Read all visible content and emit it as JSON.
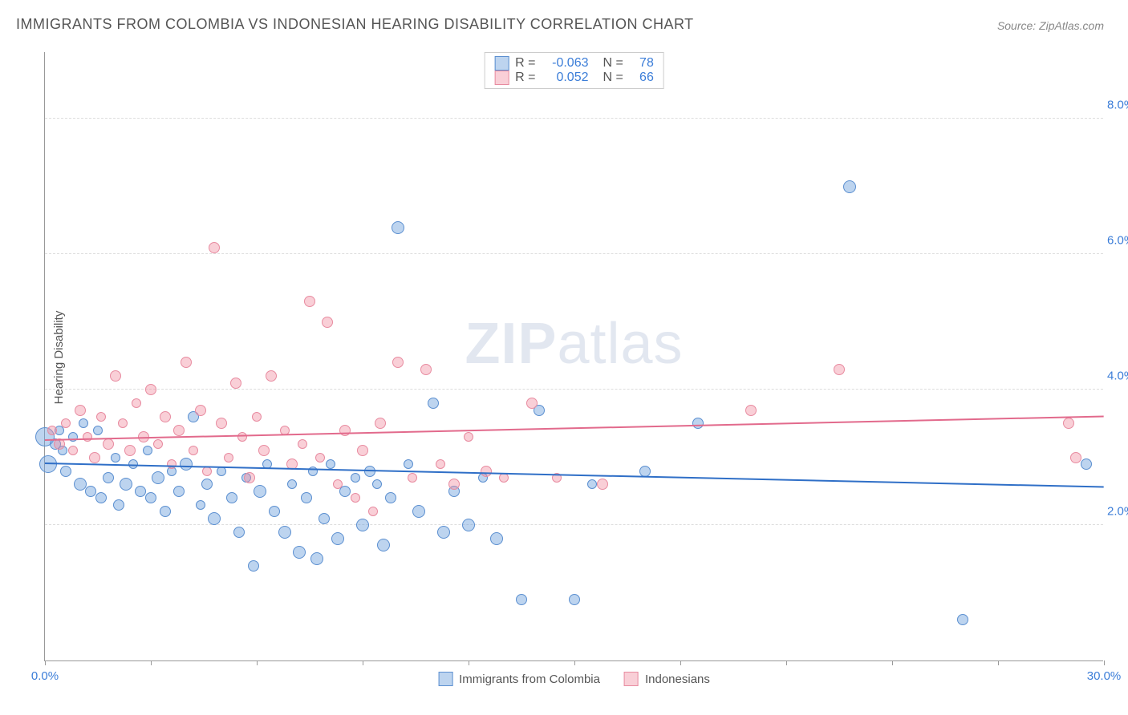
{
  "title": "IMMIGRANTS FROM COLOMBIA VS INDONESIAN HEARING DISABILITY CORRELATION CHART",
  "source": "Source: ZipAtlas.com",
  "ylabel": "Hearing Disability",
  "watermark_bold": "ZIP",
  "watermark_rest": "atlas",
  "chart": {
    "type": "scatter",
    "xlim": [
      0,
      30
    ],
    "ylim": [
      0,
      9
    ],
    "x_ticks": [
      0,
      3,
      6,
      9,
      12,
      15,
      18,
      21,
      24,
      27,
      30
    ],
    "x_tick_labels": {
      "0": "0.0%",
      "30": "30.0%"
    },
    "y_ticks": [
      2,
      4,
      6,
      8
    ],
    "y_tick_labels": {
      "2": "2.0%",
      "4": "4.0%",
      "6": "6.0%",
      "8": "8.0%"
    },
    "grid_color": "#dddddd",
    "axis_color": "#999999",
    "tick_label_color": "#3b7dd8",
    "background_color": "#ffffff",
    "series": [
      {
        "name": "Immigrants from Colombia",
        "fill": "rgba(108,160,220,0.45)",
        "stroke": "#5b8fd0",
        "line_color": "#2f6fc7",
        "r_label": "-0.063",
        "n_label": "78",
        "trend": {
          "x1": 0,
          "y1": 2.9,
          "x2": 30,
          "y2": 2.55
        },
        "points": [
          {
            "x": 0.0,
            "y": 3.3,
            "r": 12
          },
          {
            "x": 0.1,
            "y": 2.9,
            "r": 11
          },
          {
            "x": 0.3,
            "y": 3.2,
            "r": 7
          },
          {
            "x": 0.4,
            "y": 3.4,
            "r": 6
          },
          {
            "x": 0.5,
            "y": 3.1,
            "r": 6
          },
          {
            "x": 0.6,
            "y": 2.8,
            "r": 7
          },
          {
            "x": 0.8,
            "y": 3.3,
            "r": 6
          },
          {
            "x": 1.0,
            "y": 2.6,
            "r": 8
          },
          {
            "x": 1.1,
            "y": 3.5,
            "r": 6
          },
          {
            "x": 1.3,
            "y": 2.5,
            "r": 7
          },
          {
            "x": 1.5,
            "y": 3.4,
            "r": 6
          },
          {
            "x": 1.6,
            "y": 2.4,
            "r": 7
          },
          {
            "x": 1.8,
            "y": 2.7,
            "r": 7
          },
          {
            "x": 2.0,
            "y": 3.0,
            "r": 6
          },
          {
            "x": 2.1,
            "y": 2.3,
            "r": 7
          },
          {
            "x": 2.3,
            "y": 2.6,
            "r": 8
          },
          {
            "x": 2.5,
            "y": 2.9,
            "r": 6
          },
          {
            "x": 2.7,
            "y": 2.5,
            "r": 7
          },
          {
            "x": 2.9,
            "y": 3.1,
            "r": 6
          },
          {
            "x": 3.0,
            "y": 2.4,
            "r": 7
          },
          {
            "x": 3.2,
            "y": 2.7,
            "r": 8
          },
          {
            "x": 3.4,
            "y": 2.2,
            "r": 7
          },
          {
            "x": 3.6,
            "y": 2.8,
            "r": 6
          },
          {
            "x": 3.8,
            "y": 2.5,
            "r": 7
          },
          {
            "x": 4.0,
            "y": 2.9,
            "r": 8
          },
          {
            "x": 4.2,
            "y": 3.6,
            "r": 7
          },
          {
            "x": 4.4,
            "y": 2.3,
            "r": 6
          },
          {
            "x": 4.6,
            "y": 2.6,
            "r": 7
          },
          {
            "x": 4.8,
            "y": 2.1,
            "r": 8
          },
          {
            "x": 5.0,
            "y": 2.8,
            "r": 6
          },
          {
            "x": 5.3,
            "y": 2.4,
            "r": 7
          },
          {
            "x": 5.5,
            "y": 1.9,
            "r": 7
          },
          {
            "x": 5.7,
            "y": 2.7,
            "r": 6
          },
          {
            "x": 5.9,
            "y": 1.4,
            "r": 7
          },
          {
            "x": 6.1,
            "y": 2.5,
            "r": 8
          },
          {
            "x": 6.3,
            "y": 2.9,
            "r": 6
          },
          {
            "x": 6.5,
            "y": 2.2,
            "r": 7
          },
          {
            "x": 6.8,
            "y": 1.9,
            "r": 8
          },
          {
            "x": 7.0,
            "y": 2.6,
            "r": 6
          },
          {
            "x": 7.2,
            "y": 1.6,
            "r": 8
          },
          {
            "x": 7.4,
            "y": 2.4,
            "r": 7
          },
          {
            "x": 7.6,
            "y": 2.8,
            "r": 6
          },
          {
            "x": 7.7,
            "y": 1.5,
            "r": 8
          },
          {
            "x": 7.9,
            "y": 2.1,
            "r": 7
          },
          {
            "x": 8.1,
            "y": 2.9,
            "r": 6
          },
          {
            "x": 8.3,
            "y": 1.8,
            "r": 8
          },
          {
            "x": 8.5,
            "y": 2.5,
            "r": 7
          },
          {
            "x": 8.8,
            "y": 2.7,
            "r": 6
          },
          {
            "x": 9.0,
            "y": 2.0,
            "r": 8
          },
          {
            "x": 9.2,
            "y": 2.8,
            "r": 7
          },
          {
            "x": 9.4,
            "y": 2.6,
            "r": 6
          },
          {
            "x": 9.6,
            "y": 1.7,
            "r": 8
          },
          {
            "x": 9.8,
            "y": 2.4,
            "r": 7
          },
          {
            "x": 10.0,
            "y": 6.4,
            "r": 8
          },
          {
            "x": 10.3,
            "y": 2.9,
            "r": 6
          },
          {
            "x": 10.6,
            "y": 2.2,
            "r": 8
          },
          {
            "x": 11.0,
            "y": 3.8,
            "r": 7
          },
          {
            "x": 11.3,
            "y": 1.9,
            "r": 8
          },
          {
            "x": 11.6,
            "y": 2.5,
            "r": 7
          },
          {
            "x": 12.0,
            "y": 2.0,
            "r": 8
          },
          {
            "x": 12.4,
            "y": 2.7,
            "r": 6
          },
          {
            "x": 12.8,
            "y": 1.8,
            "r": 8
          },
          {
            "x": 13.5,
            "y": 0.9,
            "r": 7
          },
          {
            "x": 14.0,
            "y": 3.7,
            "r": 7
          },
          {
            "x": 15.0,
            "y": 0.9,
            "r": 7
          },
          {
            "x": 15.5,
            "y": 2.6,
            "r": 6
          },
          {
            "x": 17.0,
            "y": 2.8,
            "r": 7
          },
          {
            "x": 18.5,
            "y": 3.5,
            "r": 7
          },
          {
            "x": 22.8,
            "y": 7.0,
            "r": 8
          },
          {
            "x": 26.0,
            "y": 0.6,
            "r": 7
          },
          {
            "x": 29.5,
            "y": 2.9,
            "r": 7
          }
        ]
      },
      {
        "name": "Indonesians",
        "fill": "rgba(240,140,160,0.42)",
        "stroke": "#e88ba0",
        "line_color": "#e26a8c",
        "r_label": "0.052",
        "n_label": "66",
        "trend": {
          "x1": 0,
          "y1": 3.25,
          "x2": 30,
          "y2": 3.6
        },
        "points": [
          {
            "x": 0.2,
            "y": 3.4,
            "r": 6
          },
          {
            "x": 0.4,
            "y": 3.2,
            "r": 7
          },
          {
            "x": 0.6,
            "y": 3.5,
            "r": 6
          },
          {
            "x": 0.8,
            "y": 3.1,
            "r": 6
          },
          {
            "x": 1.0,
            "y": 3.7,
            "r": 7
          },
          {
            "x": 1.2,
            "y": 3.3,
            "r": 6
          },
          {
            "x": 1.4,
            "y": 3.0,
            "r": 7
          },
          {
            "x": 1.6,
            "y": 3.6,
            "r": 6
          },
          {
            "x": 1.8,
            "y": 3.2,
            "r": 7
          },
          {
            "x": 2.0,
            "y": 4.2,
            "r": 7
          },
          {
            "x": 2.2,
            "y": 3.5,
            "r": 6
          },
          {
            "x": 2.4,
            "y": 3.1,
            "r": 7
          },
          {
            "x": 2.6,
            "y": 3.8,
            "r": 6
          },
          {
            "x": 2.8,
            "y": 3.3,
            "r": 7
          },
          {
            "x": 3.0,
            "y": 4.0,
            "r": 7
          },
          {
            "x": 3.2,
            "y": 3.2,
            "r": 6
          },
          {
            "x": 3.4,
            "y": 3.6,
            "r": 7
          },
          {
            "x": 3.6,
            "y": 2.9,
            "r": 6
          },
          {
            "x": 3.8,
            "y": 3.4,
            "r": 7
          },
          {
            "x": 4.0,
            "y": 4.4,
            "r": 7
          },
          {
            "x": 4.2,
            "y": 3.1,
            "r": 6
          },
          {
            "x": 4.4,
            "y": 3.7,
            "r": 7
          },
          {
            "x": 4.6,
            "y": 2.8,
            "r": 6
          },
          {
            "x": 4.8,
            "y": 6.1,
            "r": 7
          },
          {
            "x": 5.0,
            "y": 3.5,
            "r": 7
          },
          {
            "x": 5.2,
            "y": 3.0,
            "r": 6
          },
          {
            "x": 5.4,
            "y": 4.1,
            "r": 7
          },
          {
            "x": 5.6,
            "y": 3.3,
            "r": 6
          },
          {
            "x": 5.8,
            "y": 2.7,
            "r": 7
          },
          {
            "x": 6.0,
            "y": 3.6,
            "r": 6
          },
          {
            "x": 6.2,
            "y": 3.1,
            "r": 7
          },
          {
            "x": 6.4,
            "y": 4.2,
            "r": 7
          },
          {
            "x": 6.8,
            "y": 3.4,
            "r": 6
          },
          {
            "x": 7.0,
            "y": 2.9,
            "r": 7
          },
          {
            "x": 7.3,
            "y": 3.2,
            "r": 6
          },
          {
            "x": 7.5,
            "y": 5.3,
            "r": 7
          },
          {
            "x": 7.8,
            "y": 3.0,
            "r": 6
          },
          {
            "x": 8.0,
            "y": 5.0,
            "r": 7
          },
          {
            "x": 8.3,
            "y": 2.6,
            "r": 6
          },
          {
            "x": 8.5,
            "y": 3.4,
            "r": 7
          },
          {
            "x": 8.8,
            "y": 2.4,
            "r": 6
          },
          {
            "x": 9.0,
            "y": 3.1,
            "r": 7
          },
          {
            "x": 9.3,
            "y": 2.2,
            "r": 6
          },
          {
            "x": 9.5,
            "y": 3.5,
            "r": 7
          },
          {
            "x": 10.0,
            "y": 4.4,
            "r": 7
          },
          {
            "x": 10.4,
            "y": 2.7,
            "r": 6
          },
          {
            "x": 10.8,
            "y": 4.3,
            "r": 7
          },
          {
            "x": 11.2,
            "y": 2.9,
            "r": 6
          },
          {
            "x": 11.6,
            "y": 2.6,
            "r": 7
          },
          {
            "x": 12.0,
            "y": 3.3,
            "r": 6
          },
          {
            "x": 12.5,
            "y": 2.8,
            "r": 7
          },
          {
            "x": 13.0,
            "y": 2.7,
            "r": 6
          },
          {
            "x": 13.8,
            "y": 3.8,
            "r": 7
          },
          {
            "x": 14.5,
            "y": 2.7,
            "r": 6
          },
          {
            "x": 15.8,
            "y": 2.6,
            "r": 7
          },
          {
            "x": 20.0,
            "y": 3.7,
            "r": 7
          },
          {
            "x": 22.5,
            "y": 4.3,
            "r": 7
          },
          {
            "x": 29.0,
            "y": 3.5,
            "r": 7
          },
          {
            "x": 29.2,
            "y": 3.0,
            "r": 7
          }
        ]
      }
    ],
    "legend_bottom": [
      {
        "label": "Immigrants from Colombia",
        "fill": "rgba(108,160,220,0.45)",
        "stroke": "#5b8fd0"
      },
      {
        "label": "Indonesians",
        "fill": "rgba(240,140,160,0.42)",
        "stroke": "#e88ba0"
      }
    ],
    "legend_top_labels": {
      "R": "R =",
      "N": "N ="
    }
  }
}
